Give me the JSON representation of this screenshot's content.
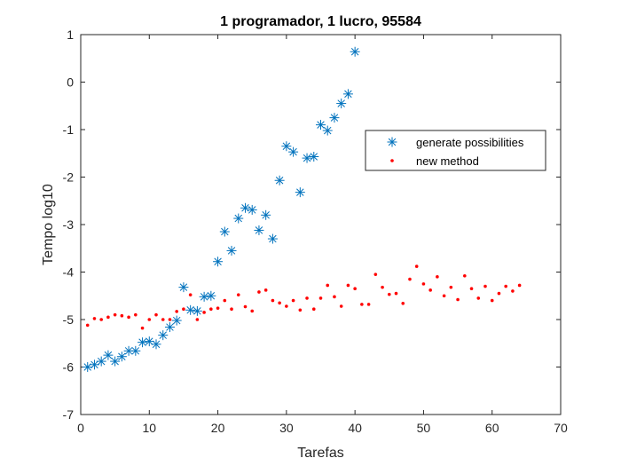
{
  "chart_data": {
    "type": "scatter",
    "title": "1 programador, 1 lucro, 95584",
    "xlabel": "Tarefas",
    "ylabel": "Tempo log10",
    "xlim": [
      0,
      70
    ],
    "ylim": [
      -7,
      1
    ],
    "xticks": [
      "0",
      "10",
      "20",
      "30",
      "40",
      "50",
      "60",
      "70"
    ],
    "yticks": [
      "1",
      "0",
      "-1",
      "-2",
      "-3",
      "-4",
      "-5",
      "-6",
      "-7"
    ],
    "grid": false,
    "legend_position": "right",
    "series": [
      {
        "name": "generate possibilities",
        "marker": "asterisk",
        "color": "#0072BD",
        "x": [
          1,
          2,
          3,
          4,
          5,
          6,
          7,
          8,
          9,
          10,
          11,
          12,
          13,
          14,
          15,
          16,
          17,
          18,
          19,
          20,
          21,
          22,
          23,
          24,
          25,
          26,
          27,
          28,
          29,
          30,
          31,
          32,
          33,
          34,
          35,
          36,
          37,
          38,
          39,
          40
        ],
        "y": [
          -6.0,
          -5.95,
          -5.88,
          -5.75,
          -5.88,
          -5.78,
          -5.66,
          -5.66,
          -5.48,
          -5.46,
          -5.52,
          -5.33,
          -5.16,
          -5.02,
          -4.32,
          -4.8,
          -4.82,
          -4.52,
          -4.5,
          -3.78,
          -3.15,
          -3.55,
          -2.87,
          -2.65,
          -2.69,
          -3.12,
          -2.8,
          -3.3,
          -2.07,
          -1.35,
          -1.47,
          -2.32,
          -1.6,
          -1.57,
          -0.9,
          -1.02,
          -0.75,
          -0.45,
          -0.25,
          0.64
        ]
      },
      {
        "name": "new method",
        "marker": "dot",
        "color": "#FF0000",
        "x": [
          1,
          2,
          3,
          4,
          5,
          6,
          7,
          8,
          9,
          10,
          11,
          12,
          13,
          14,
          15,
          16,
          17,
          18,
          19,
          20,
          21,
          22,
          23,
          24,
          25,
          26,
          27,
          28,
          29,
          30,
          31,
          32,
          33,
          34,
          35,
          36,
          37,
          38,
          39,
          40,
          41,
          42,
          43,
          44,
          45,
          46,
          47,
          48,
          49,
          50,
          51,
          52,
          53,
          54,
          55,
          56,
          57,
          58,
          59,
          60,
          61,
          62,
          63,
          64
        ],
        "y": [
          -5.12,
          -4.98,
          -5.0,
          -4.95,
          -4.9,
          -4.92,
          -4.95,
          -4.9,
          -5.18,
          -5.0,
          -4.9,
          -5.0,
          -5.0,
          -4.83,
          -4.78,
          -4.48,
          -5.0,
          -4.85,
          -4.78,
          -4.76,
          -4.6,
          -4.78,
          -4.48,
          -4.73,
          -4.82,
          -4.42,
          -4.38,
          -4.6,
          -4.65,
          -4.72,
          -4.6,
          -4.8,
          -4.55,
          -4.78,
          -4.55,
          -4.28,
          -4.52,
          -4.72,
          -4.28,
          -4.35,
          -4.68,
          -4.68,
          -4.05,
          -4.32,
          -4.47,
          -4.45,
          -4.66,
          -4.15,
          -3.88,
          -4.25,
          -4.38,
          -4.1,
          -4.5,
          -4.32,
          -4.58,
          -4.08,
          -4.35,
          -4.55,
          -4.3,
          -4.6,
          -4.45,
          -4.3,
          -4.4,
          -4.28
        ]
      }
    ]
  }
}
